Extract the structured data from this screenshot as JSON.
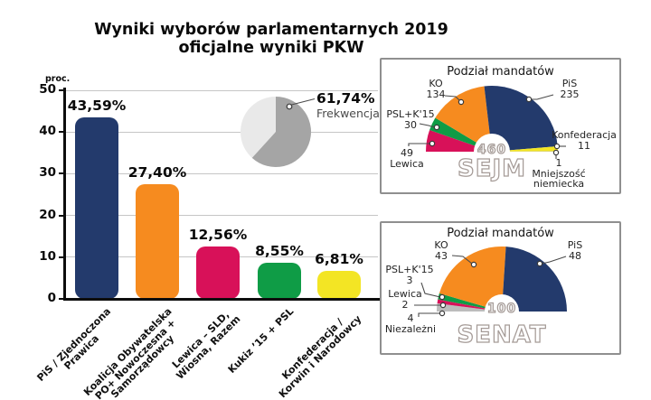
{
  "page": {
    "title_line1": "Wyniki wyborów parlamentarnych 2019",
    "title_line2": "oficjalne wyniki PKW",
    "background": "#ffffff"
  },
  "chart_data": [
    {
      "id": "wyniki-bar",
      "type": "bar",
      "unit_label": "proc.",
      "ylim": [
        0,
        50
      ],
      "yticks": [
        0,
        10,
        20,
        30,
        40,
        50
      ],
      "grid": true,
      "legend": "none",
      "categories": [
        [
          "PiS / Zjednoczona",
          "Prawica"
        ],
        [
          "Koalicja Obywatelska",
          "PO+ Nowoczesna +",
          "Samorządowcy"
        ],
        [
          "Lewica – SLD,",
          "Wiosna, Razem"
        ],
        [
          "Kukiz ’15 + PSL"
        ],
        [
          "Konfederacja /",
          "Korwin i Narodowcy"
        ]
      ],
      "values": [
        43.59,
        27.4,
        12.56,
        8.55,
        6.81
      ],
      "value_labels": [
        "43,59%",
        "27,40%",
        "12,56%",
        "8,55%",
        "6,81%"
      ],
      "colors": [
        "#233a6c",
        "#f68b1f",
        "#d81159",
        "#0f9c46",
        "#f3e524"
      ]
    },
    {
      "id": "frekwencja-pie",
      "type": "pie",
      "value_pct": 61.74,
      "label_value": "61,74%",
      "label_name": "Frekwencja",
      "slice_color": "#a5a5a5",
      "remainder_color": "#e9e9e9"
    },
    {
      "id": "sejm-hemicycle",
      "type": "hemicycle",
      "title": "Podział mandatów",
      "total_label": "460",
      "chamber_label": "SEJM",
      "parties": [
        {
          "name": "Lewica",
          "seats": 49,
          "color": "#d81159"
        },
        {
          "name": "PSL+K'15",
          "seats": 30,
          "color": "#0f9c46"
        },
        {
          "name": "KO",
          "seats": 134,
          "color": "#f68b1f"
        },
        {
          "name": "PiS",
          "seats": 235,
          "color": "#233a6c"
        },
        {
          "name": "Konfederacja",
          "seats": 11,
          "color": "#f3e524"
        },
        {
          "name": "Mniejszość niemiecka",
          "seats": 1,
          "color": "#bcbcbc"
        }
      ]
    },
    {
      "id": "senat-hemicycle",
      "type": "hemicycle",
      "title": "Podział mandatów",
      "total_label": "100",
      "chamber_label": "SENAT",
      "parties": [
        {
          "name": "Niezależni",
          "seats": 4,
          "color": "#bcbcbc"
        },
        {
          "name": "Lewica",
          "seats": 2,
          "color": "#d81159"
        },
        {
          "name": "PSL+K'15",
          "seats": 3,
          "color": "#0f9c46"
        },
        {
          "name": "KO",
          "seats": 43,
          "color": "#f68b1f"
        },
        {
          "name": "PiS",
          "seats": 48,
          "color": "#233a6c"
        }
      ]
    }
  ]
}
